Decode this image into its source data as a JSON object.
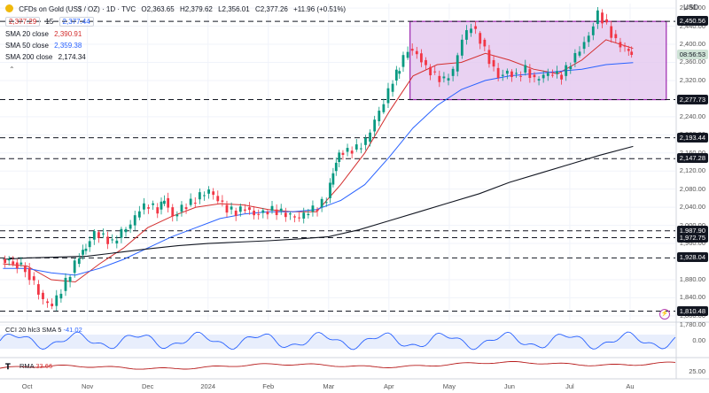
{
  "header": {
    "symbol_title": "CFDs on Gold (US$ / OZ) · 1D · TVC",
    "ohlc": {
      "o": "O2,363.65",
      "h": "H2,379.62",
      "l": "L2,356.01",
      "c": "C2,377.26",
      "chg": "+11.96 (+0.51%)"
    },
    "bid": "2,377.29",
    "spread": "15",
    "ask": "2,377.44",
    "indicators": [
      {
        "label": "SMA 20 close",
        "value": "2,390.91",
        "color": "#d32f2f"
      },
      {
        "label": "SMA 50 close",
        "value": "2,359.38",
        "color": "#2962ff"
      },
      {
        "label": "SMA 200 close",
        "value": "2,174.34",
        "color": "#131722"
      }
    ],
    "collapse_glyph": "⌃"
  },
  "axis": {
    "currency": "USD",
    "ticks": [
      "2,480.00",
      "2,440.00",
      "2,400.00",
      "2,360.00",
      "2,320.00",
      "2,240.00",
      "2,200.00",
      "2,160.00",
      "2,120.00",
      "2,080.00",
      "2,040.00",
      "2,000.00",
      "1,960.00",
      "1,880.00",
      "1,840.00",
      "1,800.00",
      "1,780.00"
    ]
  },
  "xaxis": [
    "Oct",
    "Nov",
    "Dec",
    "2024",
    "Feb",
    "Mar",
    "Apr",
    "May",
    "Jun",
    "Jul",
    "Au"
  ],
  "levels": [
    {
      "value": 2450.56,
      "label": "2,450.56"
    },
    {
      "value": 2277.73,
      "label": "2,277.73"
    },
    {
      "value": 2193.44,
      "label": "2,193.44"
    },
    {
      "value": 2147.28,
      "label": "2,147.28"
    },
    {
      "value": 1987.9,
      "label": "1,987.90"
    },
    {
      "value": 1972.75,
      "label": "1,972.75"
    },
    {
      "value": 1928.04,
      "label": "1,928.04"
    },
    {
      "value": 1810.48,
      "label": "1,810.48"
    }
  ],
  "current_price": {
    "value": 2377.26,
    "label": "08:56:53",
    "color": "#cfe3d6"
  },
  "range_box": {
    "start_month": 6.35,
    "end_month": 10.6,
    "top": 2450.56,
    "bottom": 2277.73,
    "fill": "#e4c7ef",
    "stroke": "#9c27b0"
  },
  "colors": {
    "up": "#089981",
    "down": "#f23645",
    "sma20": "#d32f2f",
    "sma50": "#2962ff",
    "sma200": "#131722",
    "cci": "#2962ff",
    "rsi": "#b71c1c"
  },
  "sub1": {
    "label": "CCI 20 hlc3 SMA 5",
    "value": "-41.02",
    "ticks": [
      "0.00"
    ]
  },
  "sub2": {
    "label": "RMA",
    "value": "33.66",
    "ticks": [
      "25.00"
    ]
  },
  "chart_data": {
    "type": "candlestick",
    "title": "CFDs on Gold (US$ / OZ) · 1D · TVC",
    "xlabel": "",
    "ylabel": "",
    "ylim": [
      1790,
      2490
    ],
    "x_unit": "months since Sep 2023 (Oct=0)",
    "series": [
      {
        "name": "Price (close)",
        "points": [
          [
            -0.4,
            1925
          ],
          [
            -0.2,
            1918
          ],
          [
            0.0,
            1905
          ],
          [
            0.15,
            1870
          ],
          [
            0.3,
            1832
          ],
          [
            0.45,
            1822
          ],
          [
            0.6,
            1855
          ],
          [
            0.75,
            1895
          ],
          [
            0.9,
            1935
          ],
          [
            1.0,
            1952
          ],
          [
            1.15,
            1985
          ],
          [
            1.3,
            1975
          ],
          [
            1.45,
            1960
          ],
          [
            1.6,
            1985
          ],
          [
            1.75,
            2000
          ],
          [
            1.9,
            2035
          ],
          [
            2.05,
            2045
          ],
          [
            2.2,
            2035
          ],
          [
            2.3,
            2060
          ],
          [
            2.45,
            2020
          ],
          [
            2.6,
            2040
          ],
          [
            2.75,
            2050
          ],
          [
            2.9,
            2065
          ],
          [
            3.05,
            2075
          ],
          [
            3.2,
            2055
          ],
          [
            3.35,
            2035
          ],
          [
            3.5,
            2030
          ],
          [
            3.65,
            2040
          ],
          [
            3.8,
            2025
          ],
          [
            3.95,
            2030
          ],
          [
            4.1,
            2035
          ],
          [
            4.25,
            2028
          ],
          [
            4.4,
            2020
          ],
          [
            4.55,
            2015
          ],
          [
            4.7,
            2030
          ],
          [
            4.85,
            2040
          ],
          [
            5.0,
            2060
          ],
          [
            5.1,
            2120
          ],
          [
            5.2,
            2160
          ],
          [
            5.35,
            2165
          ],
          [
            5.5,
            2170
          ],
          [
            5.65,
            2185
          ],
          [
            5.8,
            2230
          ],
          [
            5.95,
            2270
          ],
          [
            6.1,
            2320
          ],
          [
            6.2,
            2350
          ],
          [
            6.35,
            2390
          ],
          [
            6.5,
            2380
          ],
          [
            6.65,
            2350
          ],
          [
            6.8,
            2330
          ],
          [
            6.95,
            2320
          ],
          [
            7.1,
            2340
          ],
          [
            7.25,
            2410
          ],
          [
            7.4,
            2440
          ],
          [
            7.55,
            2410
          ],
          [
            7.7,
            2365
          ],
          [
            7.85,
            2330
          ],
          [
            8.0,
            2340
          ],
          [
            8.15,
            2330
          ],
          [
            8.3,
            2345
          ],
          [
            8.45,
            2320
          ],
          [
            8.6,
            2330
          ],
          [
            8.75,
            2335
          ],
          [
            8.9,
            2330
          ],
          [
            9.05,
            2360
          ],
          [
            9.2,
            2390
          ],
          [
            9.35,
            2420
          ],
          [
            9.5,
            2470
          ],
          [
            9.65,
            2440
          ],
          [
            9.8,
            2405
          ],
          [
            9.95,
            2390
          ],
          [
            10.05,
            2377.26
          ]
        ]
      },
      {
        "name": "SMA 20 close",
        "points": [
          [
            -0.4,
            1915
          ],
          [
            0.0,
            1910
          ],
          [
            0.4,
            1880
          ],
          [
            0.8,
            1875
          ],
          [
            1.2,
            1915
          ],
          [
            1.6,
            1950
          ],
          [
            2.0,
            1995
          ],
          [
            2.4,
            2020
          ],
          [
            2.8,
            2040
          ],
          [
            3.2,
            2048
          ],
          [
            3.6,
            2045
          ],
          [
            4.0,
            2035
          ],
          [
            4.4,
            2030
          ],
          [
            4.8,
            2030
          ],
          [
            5.2,
            2090
          ],
          [
            5.6,
            2160
          ],
          [
            6.0,
            2250
          ],
          [
            6.4,
            2330
          ],
          [
            6.8,
            2355
          ],
          [
            7.2,
            2360
          ],
          [
            7.6,
            2380
          ],
          [
            8.0,
            2365
          ],
          [
            8.4,
            2345
          ],
          [
            8.8,
            2335
          ],
          [
            9.2,
            2365
          ],
          [
            9.6,
            2410
          ],
          [
            10.05,
            2390.91
          ]
        ]
      },
      {
        "name": "SMA 50 close",
        "points": [
          [
            -0.4,
            1905
          ],
          [
            0.0,
            1905
          ],
          [
            0.4,
            1895
          ],
          [
            0.8,
            1890
          ],
          [
            1.2,
            1905
          ],
          [
            1.6,
            1925
          ],
          [
            2.0,
            1950
          ],
          [
            2.4,
            1975
          ],
          [
            2.8,
            1995
          ],
          [
            3.2,
            2015
          ],
          [
            3.6,
            2025
          ],
          [
            4.0,
            2030
          ],
          [
            4.4,
            2030
          ],
          [
            4.8,
            2035
          ],
          [
            5.2,
            2055
          ],
          [
            5.6,
            2090
          ],
          [
            6.0,
            2150
          ],
          [
            6.4,
            2215
          ],
          [
            6.8,
            2265
          ],
          [
            7.2,
            2300
          ],
          [
            7.6,
            2320
          ],
          [
            8.0,
            2330
          ],
          [
            8.4,
            2335
          ],
          [
            8.8,
            2340
          ],
          [
            9.2,
            2345
          ],
          [
            9.6,
            2355
          ],
          [
            10.05,
            2359.38
          ]
        ]
      },
      {
        "name": "SMA 200 close",
        "points": [
          [
            -0.4,
            1925
          ],
          [
            0.0,
            1928
          ],
          [
            0.5,
            1930
          ],
          [
            1.0,
            1932
          ],
          [
            1.5,
            1940
          ],
          [
            2.0,
            1948
          ],
          [
            2.5,
            1955
          ],
          [
            3.0,
            1960
          ],
          [
            3.5,
            1963
          ],
          [
            4.0,
            1966
          ],
          [
            4.5,
            1970
          ],
          [
            5.0,
            1975
          ],
          [
            5.5,
            1990
          ],
          [
            6.0,
            2010
          ],
          [
            6.5,
            2030
          ],
          [
            7.0,
            2050
          ],
          [
            7.5,
            2070
          ],
          [
            8.0,
            2095
          ],
          [
            8.5,
            2115
          ],
          [
            9.0,
            2135
          ],
          [
            9.5,
            2155
          ],
          [
            10.05,
            2174.34
          ]
        ]
      }
    ]
  }
}
